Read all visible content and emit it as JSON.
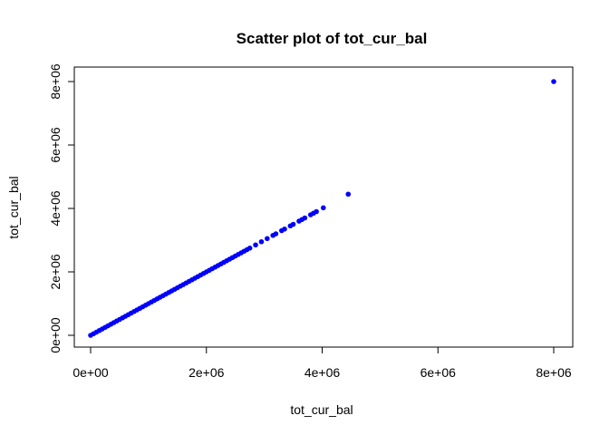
{
  "chart_data": {
    "type": "scatter",
    "title": "Scatter plot of tot_cur_bal",
    "xlabel": "tot_cur_bal",
    "ylabel": "tot_cur_bal",
    "xlim": [
      0,
      8000000
    ],
    "ylim": [
      0,
      8000000
    ],
    "x_ticks": [
      0,
      2000000,
      4000000,
      6000000,
      8000000
    ],
    "x_tick_labels": [
      "0e+00",
      "2e+06",
      "4e+06",
      "6e+06",
      "8e+06"
    ],
    "y_ticks": [
      0,
      2000000,
      4000000,
      6000000,
      8000000
    ],
    "y_tick_labels": [
      "0e+00",
      "2e+06",
      "4e+06",
      "6e+06",
      "8e+06"
    ],
    "grid": false,
    "point_color": "#0000ff",
    "points": [
      [
        0,
        0
      ],
      [
        50000,
        50000
      ],
      [
        100000,
        100000
      ],
      [
        150000,
        150000
      ],
      [
        200000,
        200000
      ],
      [
        250000,
        250000
      ],
      [
        300000,
        300000
      ],
      [
        350000,
        350000
      ],
      [
        400000,
        400000
      ],
      [
        450000,
        450000
      ],
      [
        500000,
        500000
      ],
      [
        550000,
        550000
      ],
      [
        600000,
        600000
      ],
      [
        650000,
        650000
      ],
      [
        700000,
        700000
      ],
      [
        750000,
        750000
      ],
      [
        800000,
        800000
      ],
      [
        850000,
        850000
      ],
      [
        900000,
        900000
      ],
      [
        950000,
        950000
      ],
      [
        1000000,
        1000000
      ],
      [
        1050000,
        1050000
      ],
      [
        1100000,
        1100000
      ],
      [
        1150000,
        1150000
      ],
      [
        1200000,
        1200000
      ],
      [
        1250000,
        1250000
      ],
      [
        1300000,
        1300000
      ],
      [
        1350000,
        1350000
      ],
      [
        1400000,
        1400000
      ],
      [
        1450000,
        1450000
      ],
      [
        1500000,
        1500000
      ],
      [
        1550000,
        1550000
      ],
      [
        1600000,
        1600000
      ],
      [
        1650000,
        1650000
      ],
      [
        1700000,
        1700000
      ],
      [
        1750000,
        1750000
      ],
      [
        1800000,
        1800000
      ],
      [
        1850000,
        1850000
      ],
      [
        1900000,
        1900000
      ],
      [
        1950000,
        1950000
      ],
      [
        2000000,
        2000000
      ],
      [
        2050000,
        2050000
      ],
      [
        2100000,
        2100000
      ],
      [
        2150000,
        2150000
      ],
      [
        2200000,
        2200000
      ],
      [
        2250000,
        2250000
      ],
      [
        2300000,
        2300000
      ],
      [
        2350000,
        2350000
      ],
      [
        2400000,
        2400000
      ],
      [
        2450000,
        2450000
      ],
      [
        2500000,
        2500000
      ],
      [
        2550000,
        2550000
      ],
      [
        2600000,
        2600000
      ],
      [
        2650000,
        2650000
      ],
      [
        2700000,
        2700000
      ],
      [
        2750000,
        2750000
      ],
      [
        2850000,
        2850000
      ],
      [
        2950000,
        2950000
      ],
      [
        3050000,
        3050000
      ],
      [
        3150000,
        3150000
      ],
      [
        3200000,
        3200000
      ],
      [
        3300000,
        3300000
      ],
      [
        3350000,
        3350000
      ],
      [
        3450000,
        3450000
      ],
      [
        3500000,
        3500000
      ],
      [
        3600000,
        3600000
      ],
      [
        3650000,
        3650000
      ],
      [
        3700000,
        3700000
      ],
      [
        3800000,
        3800000
      ],
      [
        3850000,
        3850000
      ],
      [
        3900000,
        3900000
      ],
      [
        4020000,
        4020000
      ],
      [
        4450000,
        4450000
      ],
      [
        8000000,
        8000000
      ]
    ]
  }
}
